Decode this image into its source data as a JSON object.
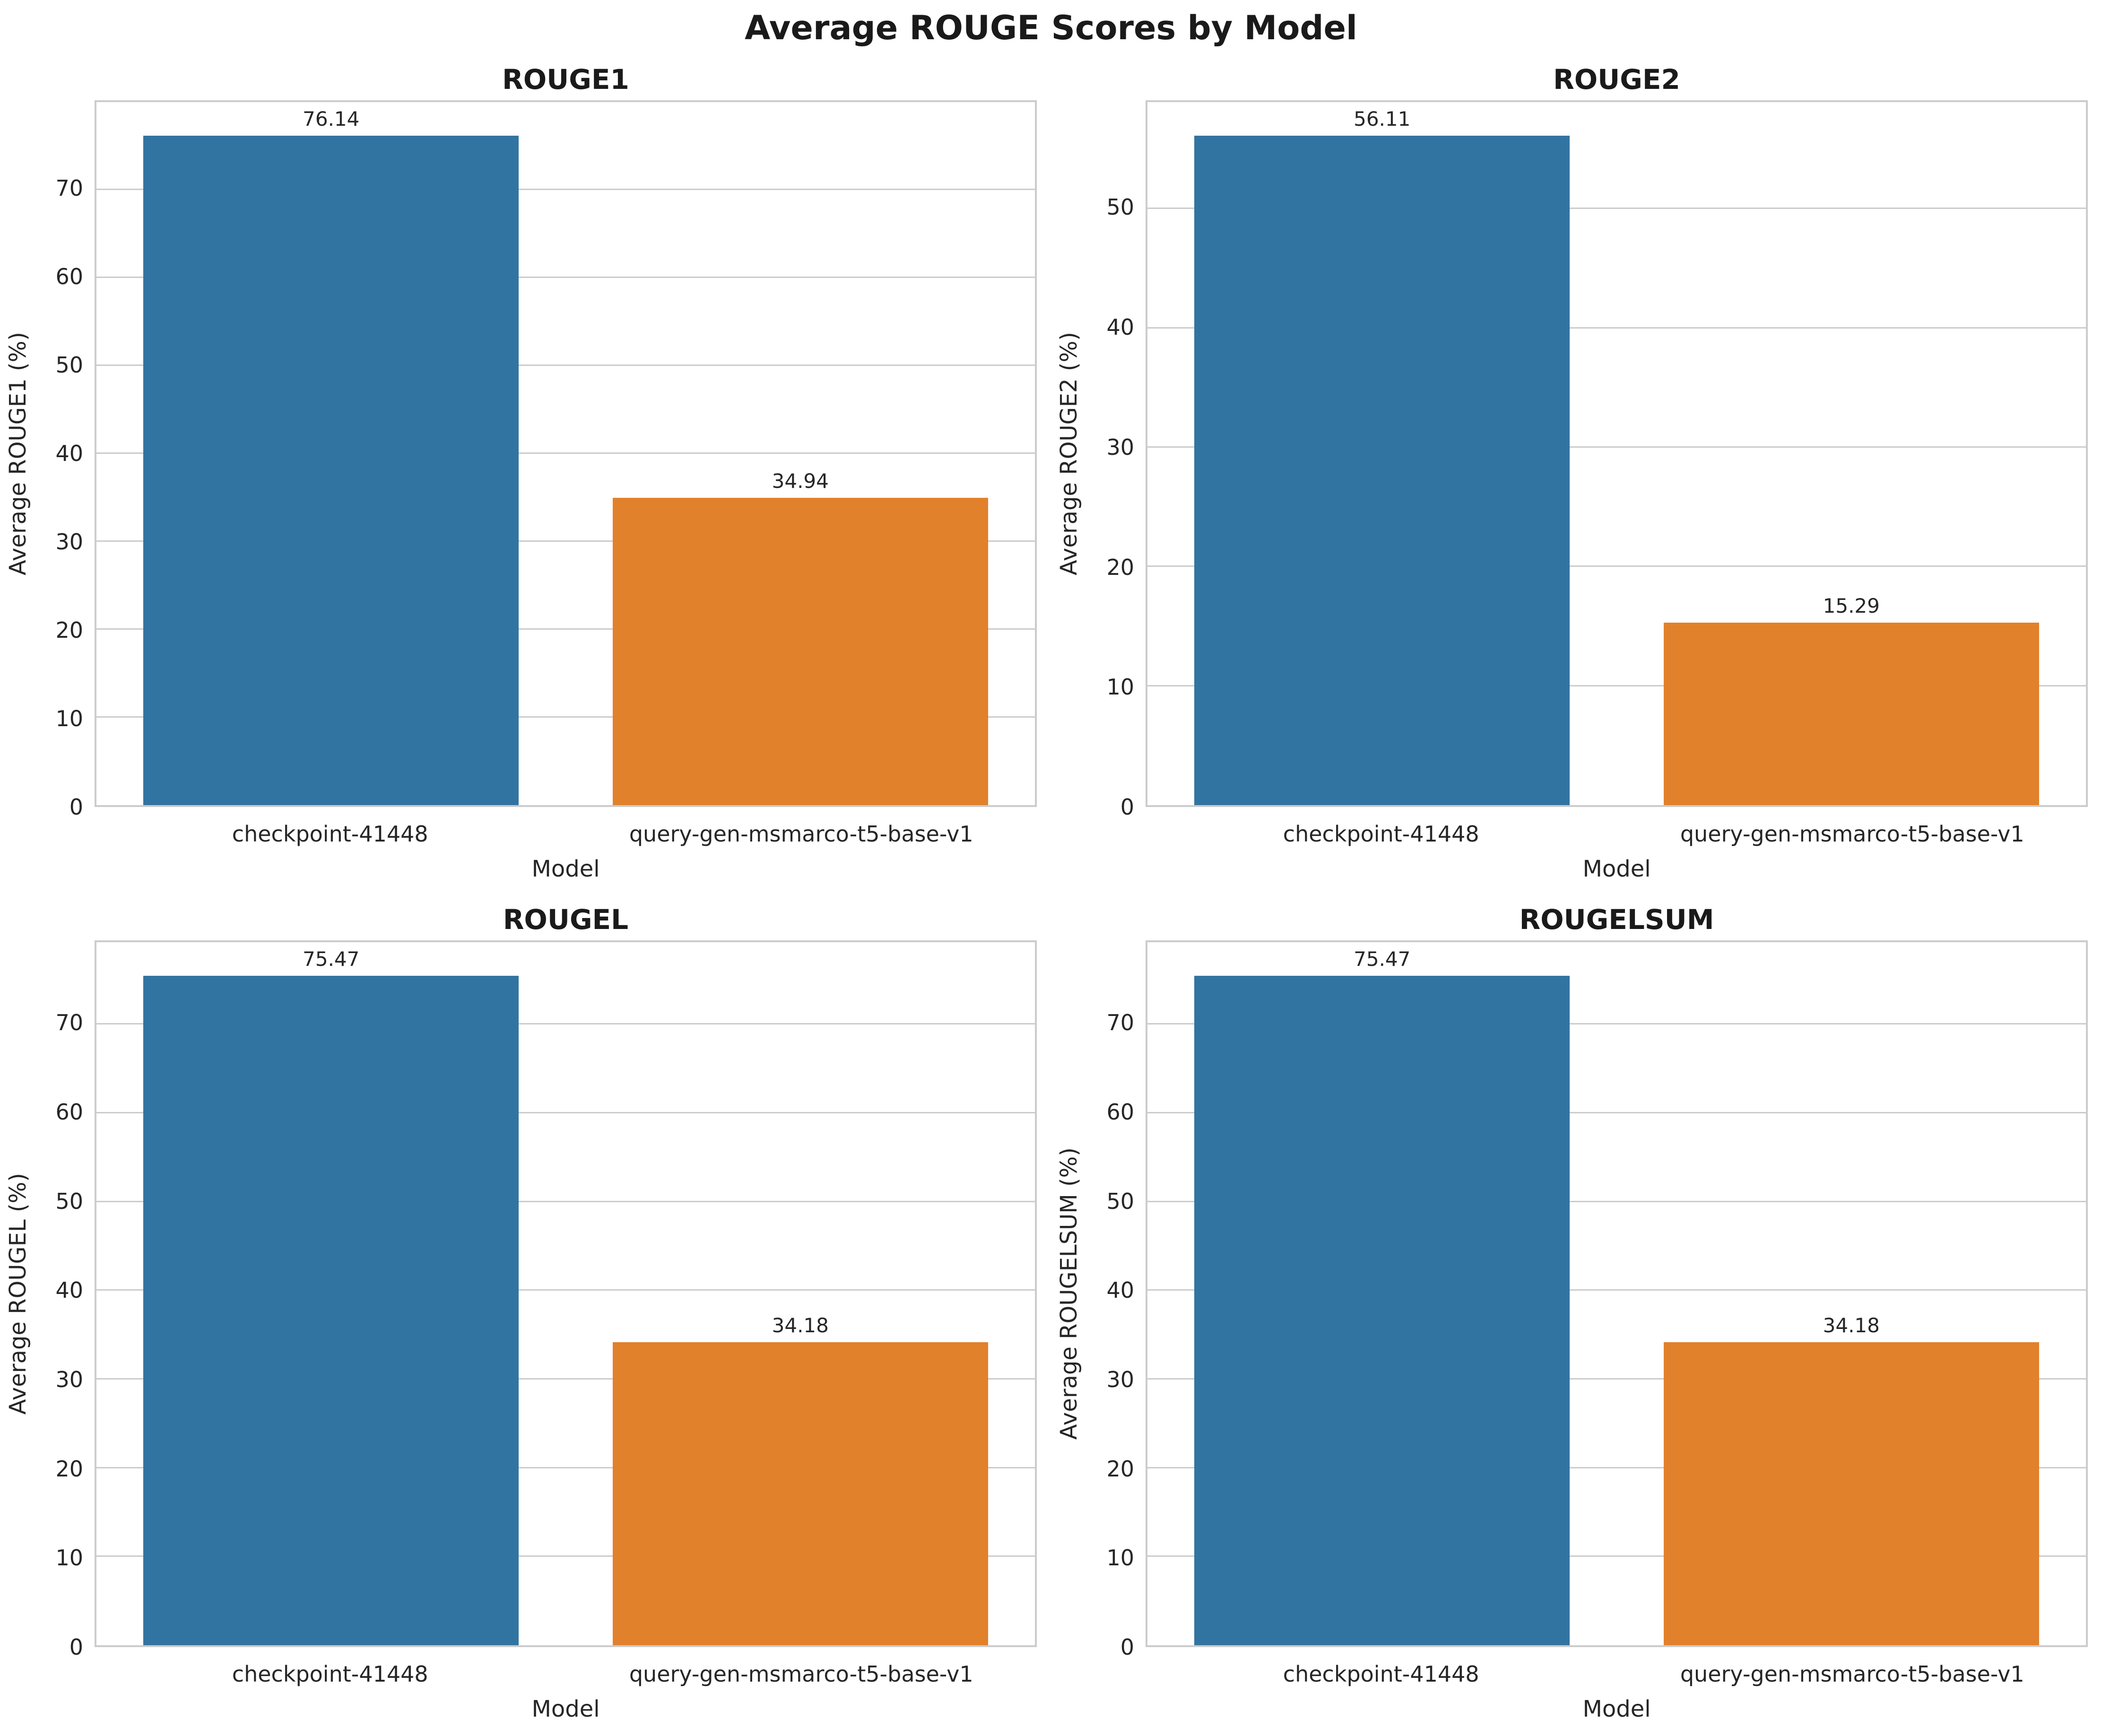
{
  "figure": {
    "title": "Average ROUGE Scores by Model"
  },
  "colors": {
    "series": [
      "#3274a1",
      "#e1812c"
    ],
    "grid": "#cccccc",
    "spine": "#cccccc",
    "text": "#262626"
  },
  "chart_data": [
    {
      "type": "bar",
      "title": "ROUGE1",
      "xlabel": "Model",
      "ylabel": "Average ROUGE1 (%)",
      "categories": [
        "checkpoint-41448",
        "query-gen-msmarco-t5-base-v1"
      ],
      "values": [
        76.14,
        34.94
      ],
      "bar_labels": [
        "76.14",
        "34.94"
      ],
      "yticks": [
        0,
        10,
        20,
        30,
        40,
        50,
        60,
        70
      ],
      "ylim": [
        0,
        79.95
      ],
      "grid": "horizontal",
      "legend": "none"
    },
    {
      "type": "bar",
      "title": "ROUGE2",
      "xlabel": "Model",
      "ylabel": "Average ROUGE2 (%)",
      "categories": [
        "checkpoint-41448",
        "query-gen-msmarco-t5-base-v1"
      ],
      "values": [
        56.11,
        15.29
      ],
      "bar_labels": [
        "56.11",
        "15.29"
      ],
      "yticks": [
        0,
        10,
        20,
        30,
        40,
        50
      ],
      "ylim": [
        0,
        58.92
      ],
      "grid": "horizontal",
      "legend": "none"
    },
    {
      "type": "bar",
      "title": "ROUGEL",
      "xlabel": "Model",
      "ylabel": "Average ROUGEL (%)",
      "categories": [
        "checkpoint-41448",
        "query-gen-msmarco-t5-base-v1"
      ],
      "values": [
        75.47,
        34.18
      ],
      "bar_labels": [
        "75.47",
        "34.18"
      ],
      "yticks": [
        0,
        10,
        20,
        30,
        40,
        50,
        60,
        70
      ],
      "ylim": [
        0,
        79.24
      ],
      "grid": "horizontal",
      "legend": "none"
    },
    {
      "type": "bar",
      "title": "ROUGELSUM",
      "xlabel": "Model",
      "ylabel": "Average ROUGELSUM (%)",
      "categories": [
        "checkpoint-41448",
        "query-gen-msmarco-t5-base-v1"
      ],
      "values": [
        75.47,
        34.18
      ],
      "bar_labels": [
        "75.47",
        "34.18"
      ],
      "yticks": [
        0,
        10,
        20,
        30,
        40,
        50,
        60,
        70
      ],
      "ylim": [
        0,
        79.24
      ],
      "grid": "horizontal",
      "legend": "none"
    }
  ]
}
